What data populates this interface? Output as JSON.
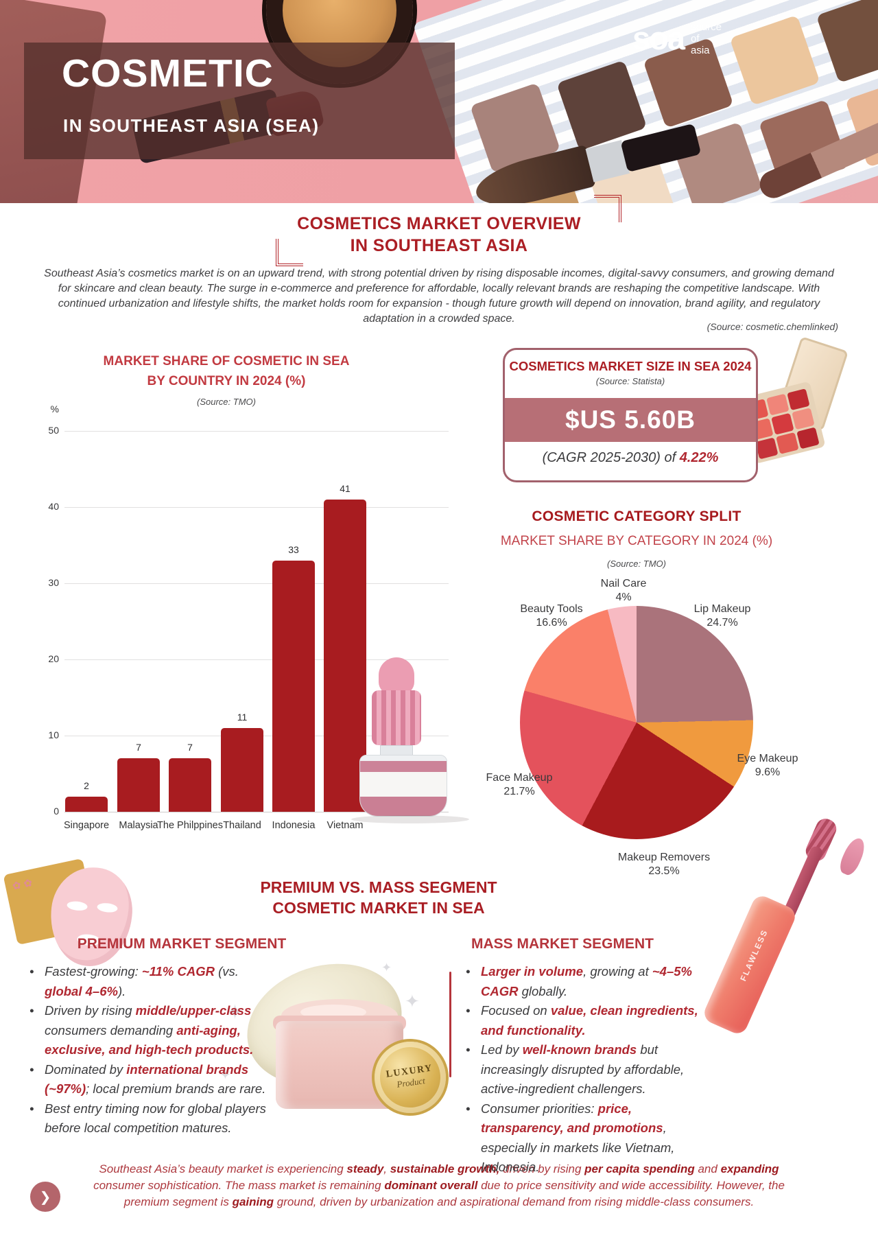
{
  "header": {
    "title": "COSMETIC",
    "subtitle": "IN SOUTHEAST ASIA (SEA)",
    "logo": {
      "mark": "soa",
      "text_lines": "source of asia"
    }
  },
  "overview": {
    "heading_line1": "COSMETICS MARKET OVERVIEW",
    "heading_line2": "IN SOUTHEAST ASIA",
    "paragraph": "Southeast Asia’s cosmetics market is on an upward trend, with strong potential driven by rising disposable incomes, digital-savvy consumers, and growing demand for skincare and clean beauty. The surge in e-commerce and preference for affordable, locally relevant brands are reshaping the competitive landscape. With continued urbanization and lifestyle shifts, the market holds room for expansion - though future growth will depend on innovation, brand agility, and regulatory adaptation in a crowded space.",
    "source": "(Source: cosmetic.chemlinked)"
  },
  "bar_section": {
    "title_line1": "MARKET SHARE OF COSMETIC IN SEA",
    "title_line2": "BY COUNTRY IN 2024 (%)",
    "source": "(Source: TMO)",
    "unit_label": "%"
  },
  "market_size_box": {
    "title": "COSMETICS MARKET SIZE IN SEA 2024",
    "source": "(Source: Statista)",
    "value": "$US 5.60B",
    "cagr_prefix": "(CAGR 2025-2030) of ",
    "cagr_value": "4.22%"
  },
  "category_section": {
    "title": "COSMETIC CATEGORY SPLIT",
    "subtitle": "MARKET SHARE BY CATEGORY IN 2024 (%)",
    "source": "(Source: TMO)"
  },
  "segment_section": {
    "heading_line1": "PREMIUM VS. MASS SEGMENT",
    "heading_line2": "COSMETIC MARKET IN SEA",
    "premium_title": "PREMIUM MARKET SEGMENT",
    "mass_title": "MASS MARKET SEGMENT",
    "premium_bullets": [
      [
        {
          "t": "Fastest-growing: "
        },
        {
          "t": "~11% CAGR",
          "b": true
        },
        {
          "t": " (vs. "
        },
        {
          "t": "global 4–6%",
          "b": true
        },
        {
          "t": ")."
        }
      ],
      [
        {
          "t": "Driven by rising "
        },
        {
          "t": "middle/upper-class",
          "b": true
        },
        {
          "t": " consumers demanding "
        },
        {
          "t": "anti-aging, exclusive, and high-tech products.",
          "b": true
        }
      ],
      [
        {
          "t": "Dominated by "
        },
        {
          "t": "international brands (~97%)",
          "b": true
        },
        {
          "t": "; local premium brands are rare."
        }
      ],
      [
        {
          "t": "Best entry timing now for global players before local competition matures."
        }
      ]
    ],
    "mass_bullets": [
      [
        {
          "t": "Larger in volume",
          "b": true
        },
        {
          "t": ", growing at "
        },
        {
          "t": "~4–5% CAGR",
          "b": true
        },
        {
          "t": " globally."
        }
      ],
      [
        {
          "t": "Focused on "
        },
        {
          "t": "value, clean ingredients, and functionality.",
          "b": true
        }
      ],
      [
        {
          "t": "Led by "
        },
        {
          "t": "well-known brands",
          "b": true
        },
        {
          "t": " but increasingly disrupted by affordable, active-ingredient challengers."
        }
      ],
      [
        {
          "t": "Consumer priorities: "
        },
        {
          "t": "price, transparency, and promotions",
          "b": true
        },
        {
          "t": ", especially in markets like Vietnam, Indonesia."
        }
      ]
    ],
    "luxury_badge_line1": "LUXURY",
    "luxury_badge_line2": "Product",
    "flawless_label": "FLAWLESS"
  },
  "summary": {
    "segments": [
      {
        "t": "Southeast Asia’s beauty market is experiencing "
      },
      {
        "t": "steady",
        "b": true
      },
      {
        "t": ", "
      },
      {
        "t": "sustainable growth,",
        "b": true
      },
      {
        "t": " driven by rising "
      },
      {
        "t": "per capita spending",
        "b": true
      },
      {
        "t": " and "
      },
      {
        "t": "expanding",
        "b": true
      },
      {
        "t": " consumer sophistication. The mass market is remaining "
      },
      {
        "t": "dominant overall",
        "b": true
      },
      {
        "t": " due to price sensitivity and wide accessibility. However, the premium segment is "
      },
      {
        "t": "gaining",
        "b": true
      },
      {
        "t": " ground, driven by urbanization and aspirational demand from rising middle-class consumers."
      }
    ],
    "chevron_icon": "❯"
  },
  "colors": {
    "deep_red": "#a6191d",
    "heading_red": "#ab1e24",
    "medium_red": "#c2444b",
    "bar_red": "#a81c20",
    "box_border": "#a2616c",
    "box_band": "#b76f76",
    "bold_inline_red": "#b02730",
    "summary_red": "#ad383e"
  },
  "chart_data": [
    {
      "type": "bar",
      "title": "MARKET SHARE OF COSMETIC IN SEA BY COUNTRY IN 2024 (%)",
      "source": "TMO",
      "categories": [
        "Singapore",
        "Malaysia",
        "The Philppines",
        "Thailand",
        "Indonesia",
        "Vietnam"
      ],
      "values": [
        2,
        7,
        7,
        11,
        33,
        41
      ],
      "xlabel": "",
      "ylabel": "%",
      "ylim": [
        0,
        50
      ],
      "yticks": [
        0,
        10,
        20,
        30,
        40,
        50
      ],
      "grid": true,
      "bar_color": "#a81c20"
    },
    {
      "type": "pie",
      "title": "COSMETIC CATEGORY SPLIT — MARKET SHARE BY CATEGORY IN 2024 (%)",
      "source": "TMO",
      "start_angle_deg": 0,
      "direction": "clockwise",
      "slices": [
        {
          "label": "Lip Makeup",
          "value": 24.7,
          "color": "#aa737b"
        },
        {
          "label": "Eye Makeup",
          "value": 9.6,
          "color": "#f09a3e"
        },
        {
          "label": "Makeup Removers",
          "value": 23.5,
          "color": "#a81b1d"
        },
        {
          "label": "Face Makeup",
          "value": 21.7,
          "color": "#e4525c"
        },
        {
          "label": "Beauty Tools",
          "value": 16.6,
          "color": "#fa8069"
        },
        {
          "label": "Nail Care",
          "value": 4,
          "color": "#f7bac2"
        }
      ]
    }
  ]
}
